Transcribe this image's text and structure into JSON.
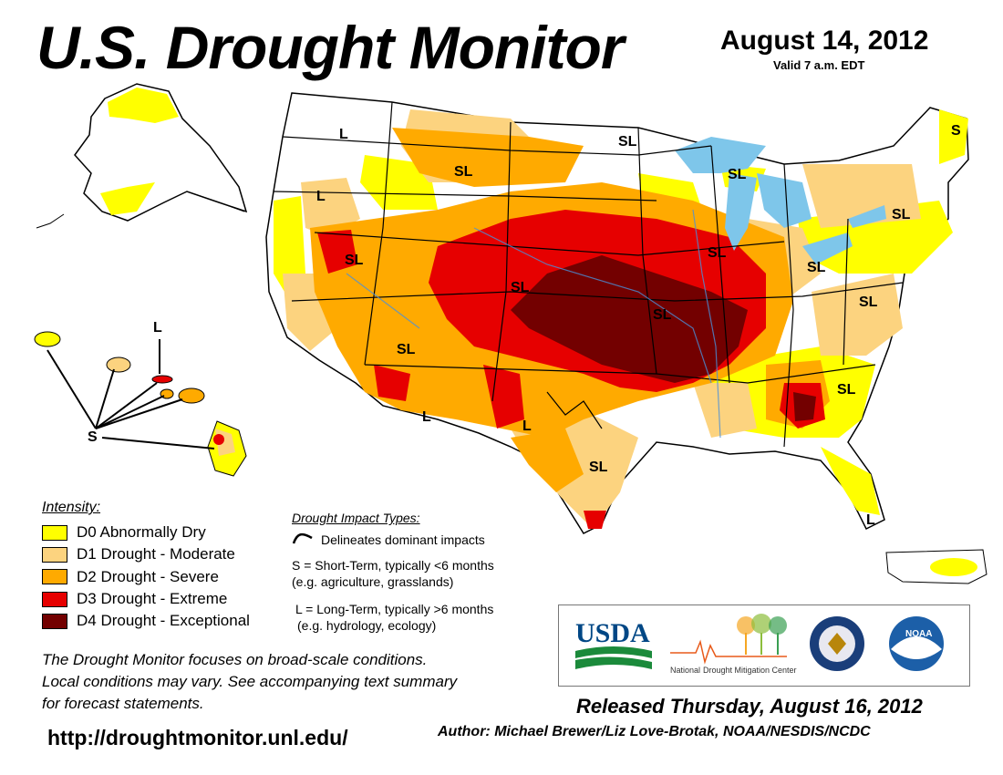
{
  "header": {
    "title": "U.S. Drought Monitor",
    "date": "August 14, 2012",
    "valid": "Valid 7 a.m. EDT"
  },
  "legend": {
    "heading": "Intensity:",
    "items": [
      {
        "label": "D0 Abnormally Dry",
        "color": "#FFFF00"
      },
      {
        "label": "D1 Drought - Moderate",
        "color": "#FCD37F"
      },
      {
        "label": "D2 Drought - Severe",
        "color": "#FFAA00"
      },
      {
        "label": "D3 Drought - Extreme",
        "color": "#E60000"
      },
      {
        "label": "D4 Drought - Exceptional",
        "color": "#730000"
      }
    ]
  },
  "impacts": {
    "heading": "Drought Impact Types:",
    "delineates": "Delineates dominant impacts",
    "short_term": "S = Short-Term, typically <6 months",
    "short_term_eg": "(e.g. agriculture, grasslands)",
    "long_term": "L = Long-Term, typically >6 months",
    "long_term_eg": "(e.g. hydrology, ecology)"
  },
  "map_labels": {
    "sl": "SL",
    "s": "S",
    "l": "L"
  },
  "footer": {
    "note_1": "The Drought Monitor focuses on broad-scale conditions.",
    "note_2": "Local conditions may vary. See accompanying text summary",
    "note_3": "for forecast statements.",
    "url": "http://droughtmonitor.unl.edu/",
    "released": "Released Thursday, August 16, 2012",
    "author": "Author: Michael Brewer/Liz Love-Brotak, NOAA/NESDIS/NCDC"
  },
  "logos": {
    "usda": "USDA",
    "ndmc_1": "National",
    "ndmc_2": "Drought Mitigation Center",
    "noaa": "NOAA"
  },
  "colors": {
    "water": "#7EC6EA",
    "border": "#000000",
    "county": "#BBBBBB"
  }
}
